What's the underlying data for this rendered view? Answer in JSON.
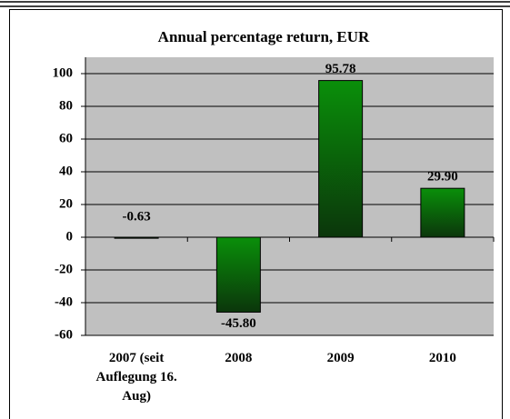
{
  "chart_data": {
    "type": "bar",
    "title": "Annual percentage return, EUR",
    "categories": [
      "2007 (seit Auflegung 16. Aug)",
      "2008",
      "2009",
      "2010"
    ],
    "values": [
      -0.63,
      -45.8,
      95.78,
      29.9
    ],
    "value_labels": [
      "-0.63",
      "-45.80",
      "95.78",
      "29.90"
    ],
    "color": "#0a8f0a",
    "ylim": [
      -60,
      110
    ],
    "yticks": [
      -60,
      -40,
      -20,
      0,
      20,
      40,
      60,
      80,
      100
    ],
    "grid": true
  }
}
